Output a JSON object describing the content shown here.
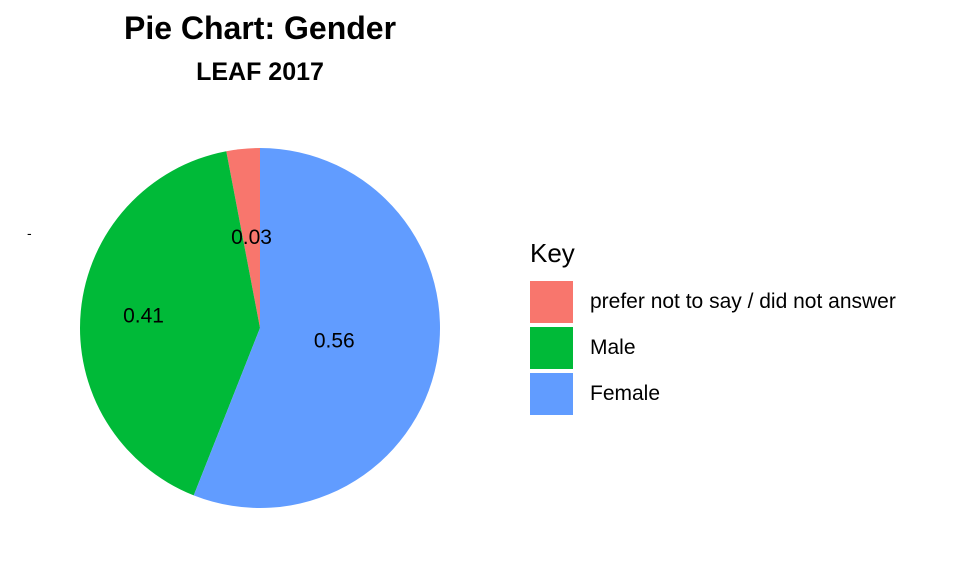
{
  "chart_data": {
    "type": "pie",
    "title": "Pie Chart: Gender",
    "subtitle": "LEAF 2017",
    "stray_mark": "-",
    "legend_title": "Key",
    "legend_position": "right",
    "slices": [
      {
        "label": "prefer not to say / did not answer",
        "value": 0.03,
        "display": "0.03",
        "color": "#F8766D"
      },
      {
        "label": "Male",
        "value": 0.41,
        "display": "0.41",
        "color": "#00BA38"
      },
      {
        "label": "Female",
        "value": 0.56,
        "display": "0.56",
        "color": "#619CFF"
      }
    ]
  }
}
